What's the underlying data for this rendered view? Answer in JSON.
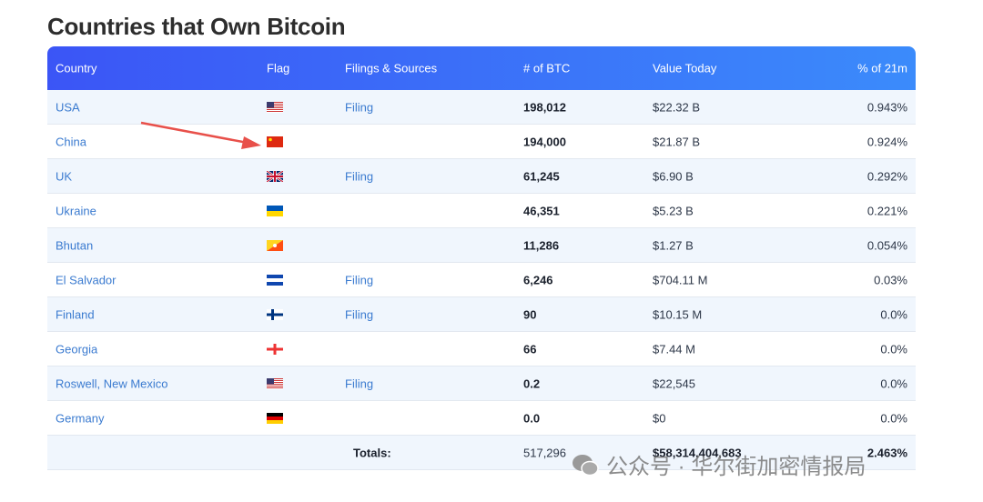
{
  "header": {
    "title": "Countries that Own Bitcoin"
  },
  "table": {
    "columns": [
      "Country",
      "Flag",
      "Filings & Sources",
      "# of BTC",
      "Value Today",
      "% of 21m"
    ],
    "rows": [
      {
        "country": "USA",
        "filing": "Filing",
        "btc": "198,012",
        "value": "$22.32 B",
        "percent": "0.943%"
      },
      {
        "country": "China",
        "btc": "194,000",
        "value": "$21.87 B",
        "percent": "0.924%"
      },
      {
        "country": "UK",
        "filing": "Filing",
        "btc": "61,245",
        "value": "$6.90 B",
        "percent": "0.292%"
      },
      {
        "country": "Ukraine",
        "btc": "46,351",
        "value": "$5.23 B",
        "percent": "0.221%"
      },
      {
        "country": "Bhutan",
        "btc": "11,286",
        "value": "$1.27 B",
        "percent": "0.054%"
      },
      {
        "country": "El Salvador",
        "filing": "Filing",
        "btc": "6,246",
        "value": "$704.11 M",
        "percent": "0.03%"
      },
      {
        "country": "Finland",
        "filing": "Filing",
        "btc": "90",
        "value": "$10.15 M",
        "percent": "0.0%"
      },
      {
        "country": "Georgia",
        "btc": "66",
        "value": "$7.44 M",
        "percent": "0.0%"
      },
      {
        "country": "Roswell, New Mexico",
        "filing": "Filing",
        "btc": "0.2",
        "value": "$22,545",
        "percent": "0.0%"
      },
      {
        "country": "Germany",
        "btc": "0.0",
        "value": "$0",
        "percent": "0.0%"
      }
    ],
    "totals": {
      "label": "Totals:",
      "btc": "517,296",
      "value": "$58,314,404,683",
      "percent": "2.463%"
    }
  },
  "watermark": "公众号 · 华尔街加密情报局"
}
